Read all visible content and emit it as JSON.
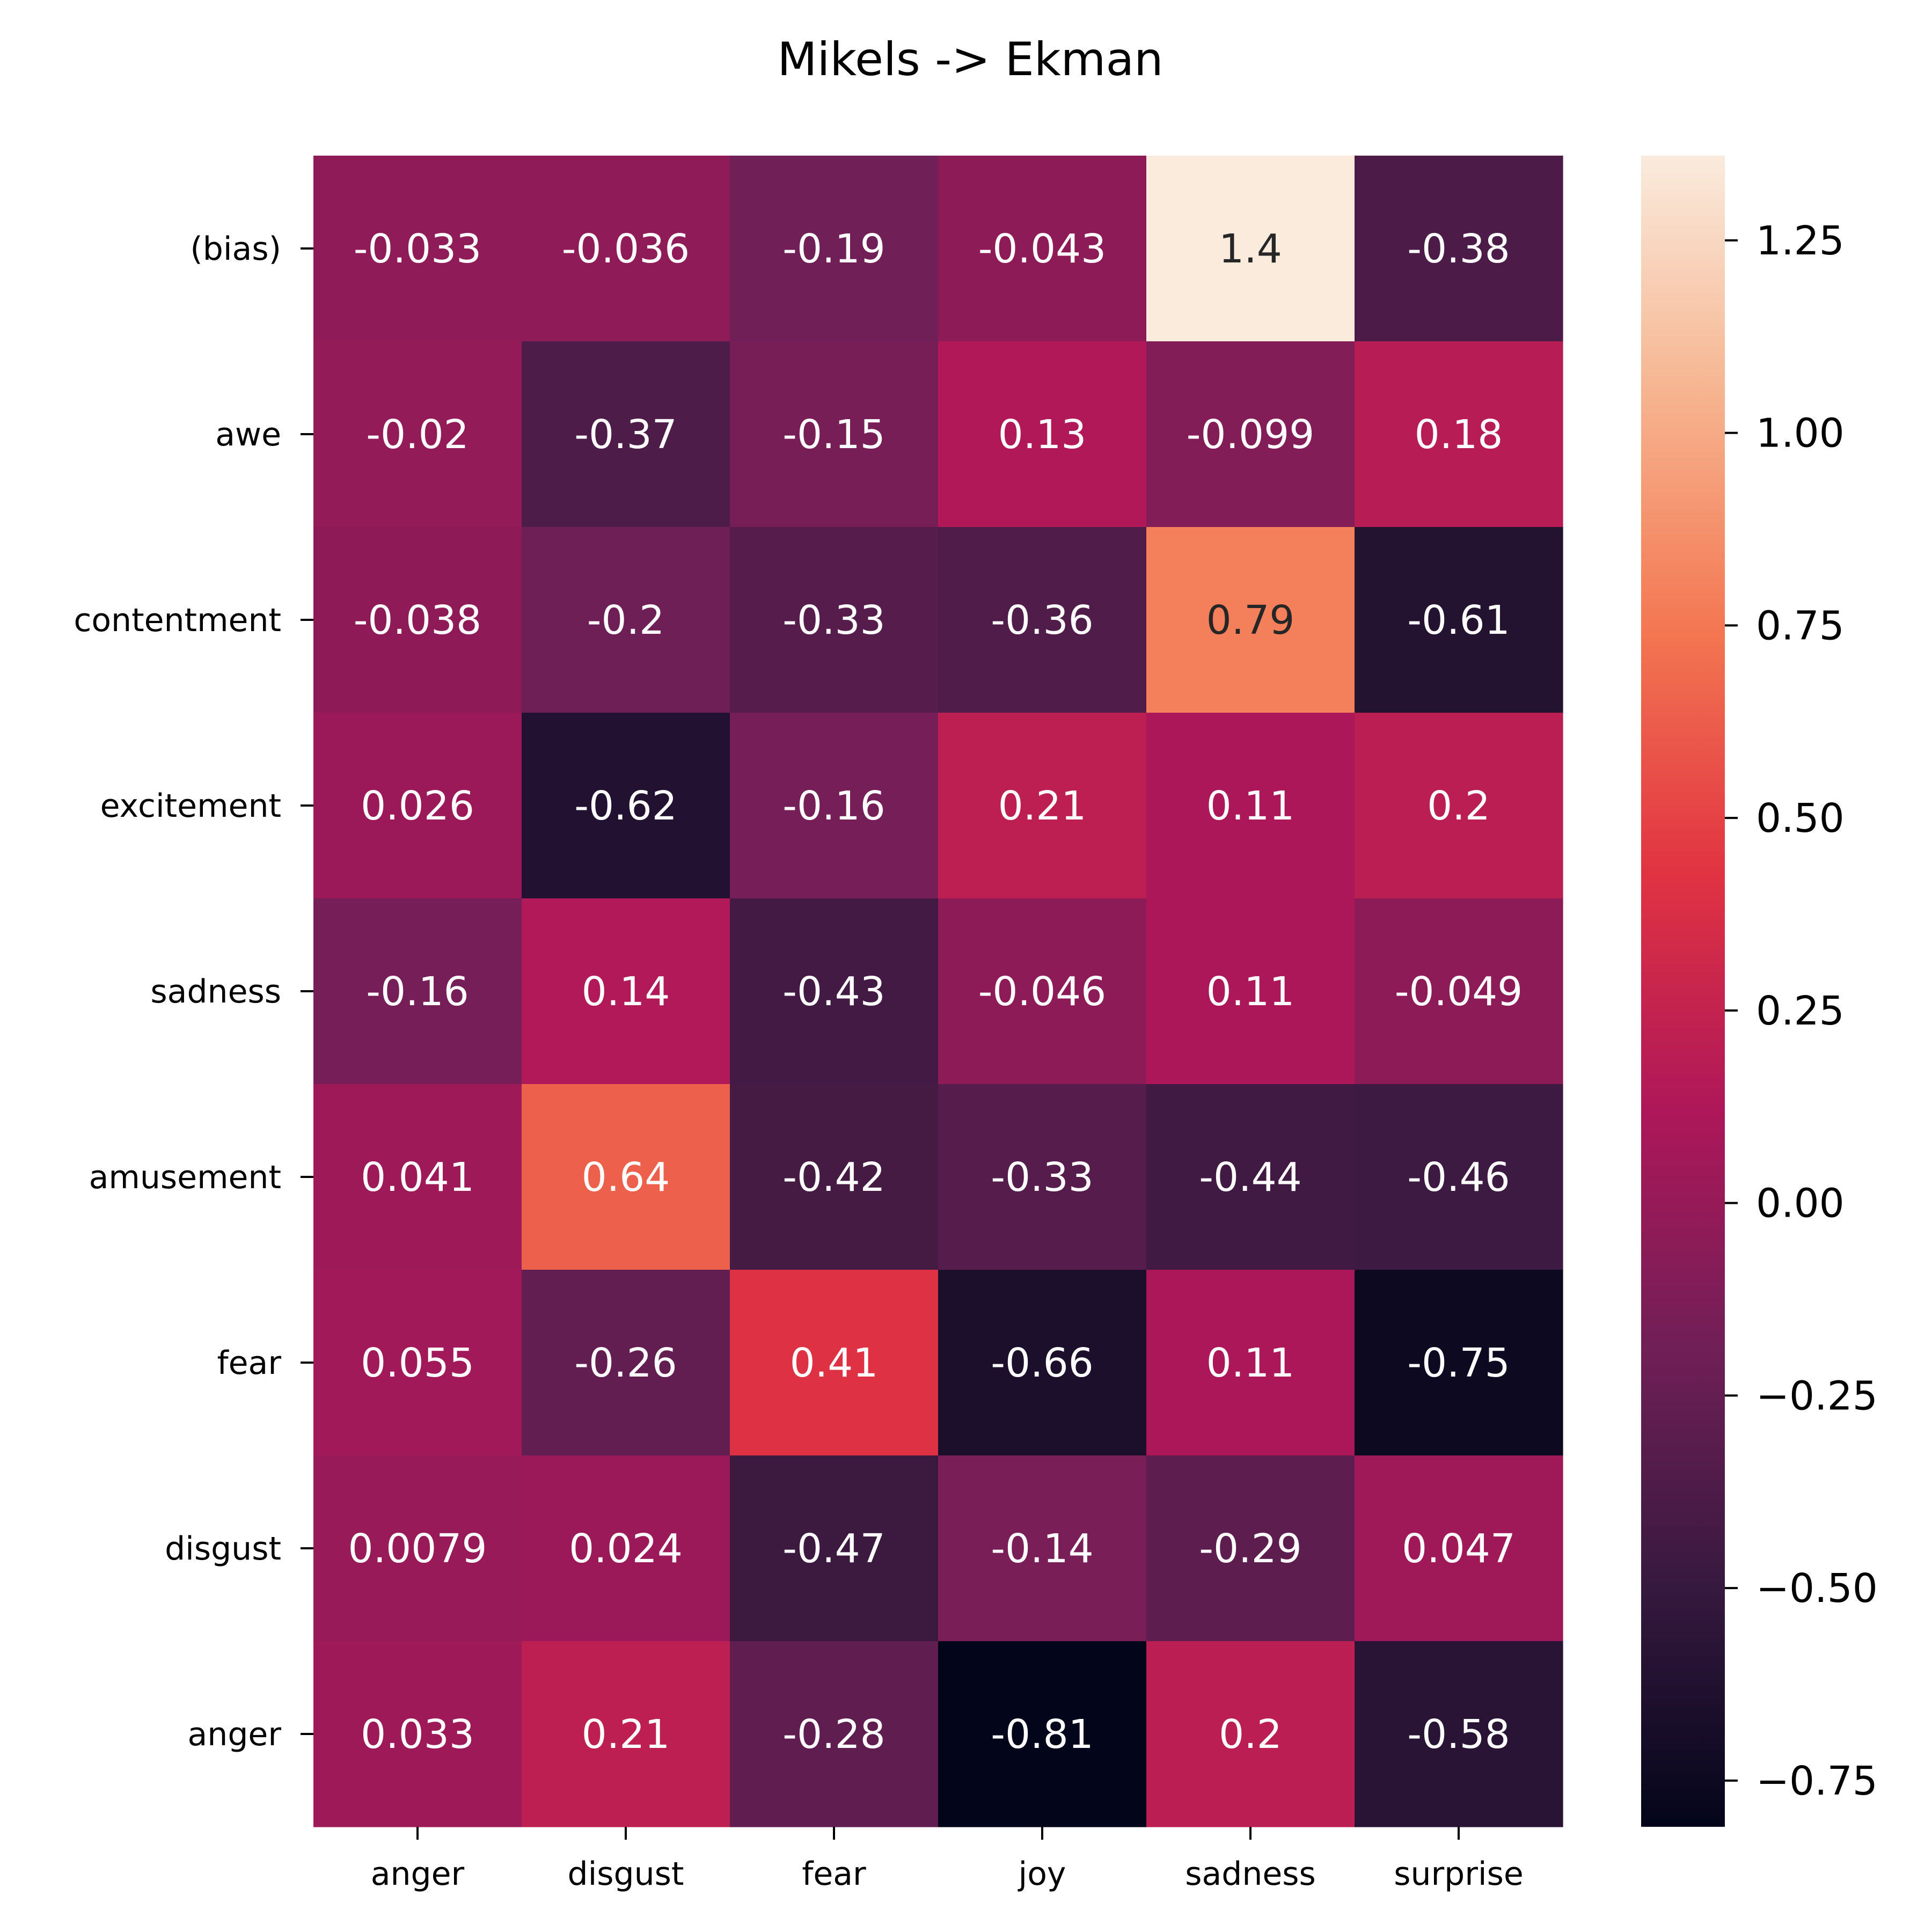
{
  "chart_data": {
    "type": "heatmap",
    "title": "Mikels -> Ekman",
    "xlabel": "",
    "ylabel": "",
    "x_categories": [
      "anger",
      "disgust",
      "fear",
      "joy",
      "sadness",
      "surprise"
    ],
    "y_categories": [
      "(bias)",
      "awe",
      "contentment",
      "excitement",
      "sadness",
      "amusement",
      "fear",
      "disgust",
      "anger"
    ],
    "values": [
      [
        -0.033,
        -0.036,
        -0.19,
        -0.043,
        1.36,
        -0.38
      ],
      [
        -0.02,
        -0.37,
        -0.15,
        0.13,
        -0.099,
        0.18
      ],
      [
        -0.038,
        -0.2,
        -0.33,
        -0.36,
        0.79,
        -0.61
      ],
      [
        0.026,
        -0.62,
        -0.16,
        0.21,
        0.11,
        0.2
      ],
      [
        -0.16,
        0.14,
        -0.43,
        -0.046,
        0.11,
        -0.049
      ],
      [
        0.041,
        0.64,
        -0.42,
        -0.33,
        -0.44,
        -0.46
      ],
      [
        0.055,
        -0.26,
        0.41,
        -0.66,
        0.11,
        -0.75
      ],
      [
        0.0079,
        0.024,
        -0.47,
        -0.14,
        -0.29,
        0.047
      ],
      [
        0.033,
        0.21,
        -0.28,
        -0.81,
        0.2,
        -0.58
      ]
    ],
    "annotations": [
      [
        "-0.033",
        "-0.036",
        "-0.19",
        "-0.043",
        "1.4",
        "-0.38"
      ],
      [
        "-0.02",
        "-0.37",
        "-0.15",
        "0.13",
        "-0.099",
        "0.18"
      ],
      [
        "-0.038",
        "-0.2",
        "-0.33",
        "-0.36",
        "0.79",
        "-0.61"
      ],
      [
        "0.026",
        "-0.62",
        "-0.16",
        "0.21",
        "0.11",
        "0.2"
      ],
      [
        "-0.16",
        "0.14",
        "-0.43",
        "-0.046",
        "0.11",
        "-0.049"
      ],
      [
        "0.041",
        "0.64",
        "-0.42",
        "-0.33",
        "-0.44",
        "-0.46"
      ],
      [
        "0.055",
        "-0.26",
        "0.41",
        "-0.66",
        "0.11",
        "-0.75"
      ],
      [
        "0.0079",
        "0.024",
        "-0.47",
        "-0.14",
        "-0.29",
        "0.047"
      ],
      [
        "0.033",
        "0.21",
        "-0.28",
        "-0.81",
        "0.2",
        "-0.58"
      ]
    ],
    "colormap": "rocket",
    "colorbar": {
      "vmin": -0.81,
      "vmax": 1.36,
      "ticks": [
        -0.75,
        -0.5,
        -0.25,
        0.0,
        0.25,
        0.5,
        0.75,
        1.0,
        1.25
      ],
      "tick_labels": [
        "−0.75",
        "−0.50",
        "−0.25",
        "0.00",
        "0.25",
        "0.50",
        "0.75",
        "1.00",
        "1.25"
      ]
    },
    "grid": false,
    "legend": "colorbar-right"
  },
  "colors": {
    "rocket_stops": [
      "#03051a",
      "#36193e",
      "#701f57",
      "#ae1759",
      "#e13342",
      "#f37651",
      "#f6b48f",
      "#faebdd"
    ],
    "light_text": "#ffffff",
    "dark_text": "#262626",
    "axis": "#000000"
  }
}
